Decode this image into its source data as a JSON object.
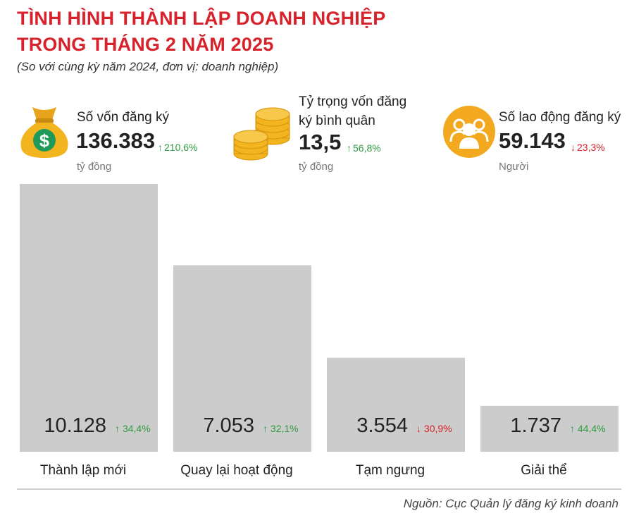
{
  "header": {
    "title_line1": "TÌNH HÌNH THÀNH LẬP DOANH NGHIỆP",
    "title_line2": "TRONG THÁNG 2 NĂM 2025",
    "subtitle": "(So với cùng kỳ năm 2024, đơn vị: doanh nghiệp)"
  },
  "stats": [
    {
      "label": "Số vốn đăng ký",
      "value": "136.383",
      "change": "210,6%",
      "direction": "up",
      "unit": "tỷ đồng",
      "icon": "money-bag-icon"
    },
    {
      "label_line1": "Tỷ trọng vốn đăng",
      "label_line2": "ký bình quân",
      "value": "13,5",
      "change": "56,8%",
      "direction": "up",
      "unit": "tỷ đồng",
      "icon": "coins-icon"
    },
    {
      "label": "Số lao động đăng ký",
      "value": "59.143",
      "change": "23,3%",
      "direction": "down",
      "unit": "Người",
      "icon": "people-icon"
    }
  ],
  "chart_data": {
    "type": "bar",
    "categories": [
      "Thành lập mới",
      "Quay lại hoạt động",
      "Tạm ngưng",
      "Giải thể"
    ],
    "values": [
      10128,
      7053,
      3554,
      1737
    ],
    "value_labels": [
      "10.128",
      "7.053",
      "3.554",
      "1.737"
    ],
    "changes": [
      "34,4%",
      "32,1%",
      "30,9%",
      "44,4%"
    ],
    "directions": [
      "up",
      "up",
      "down",
      "up"
    ],
    "bar_color": "#cccccc"
  },
  "colors": {
    "title": "#d7222b",
    "icon_circle": "#f2a91f",
    "up": "#2e9b3f",
    "down": "#d7222b"
  },
  "footer": {
    "source": "Nguồn: Cục Quản lý đăng ký kinh doanh"
  }
}
